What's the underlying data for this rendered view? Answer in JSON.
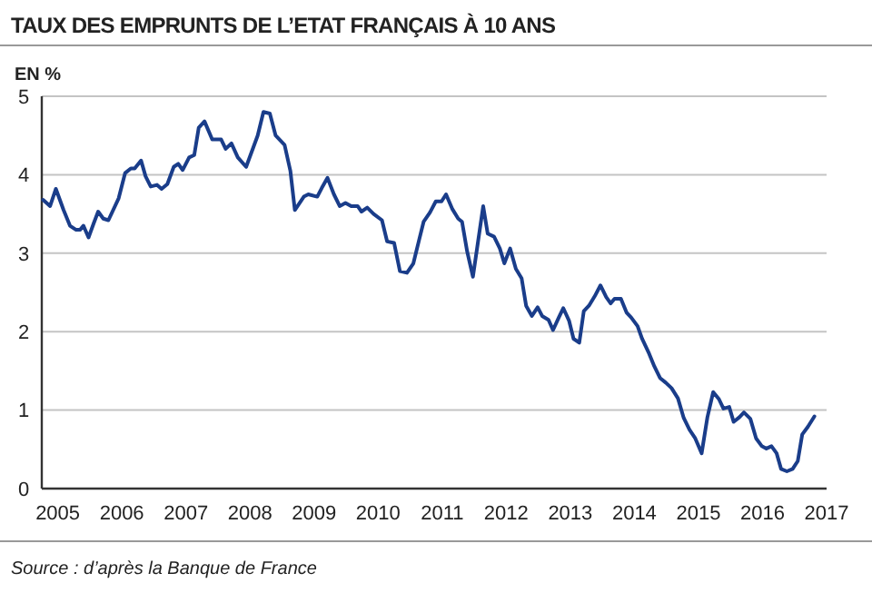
{
  "chart_data": {
    "type": "line",
    "title": "TAUX DES EMPRUNTS DE L’ETAT FRANÇAIS À 10 ANS",
    "ylabel": "EN %",
    "annotations": [
      "Source : d’après la Banque de France"
    ],
    "x": [
      2004.77,
      2004.88,
      2004.97,
      2005.09,
      2005.19,
      2005.28,
      2005.35,
      2005.4,
      2005.48,
      2005.56,
      2005.63,
      2005.71,
      2005.79,
      2005.95,
      2006.05,
      2006.14,
      2006.2,
      2006.3,
      2006.37,
      2006.45,
      2006.55,
      2006.62,
      2006.71,
      2006.81,
      2006.88,
      2006.95,
      2007.05,
      2007.13,
      2007.2,
      2007.29,
      2007.41,
      2007.55,
      2007.62,
      2007.71,
      2007.81,
      2007.94,
      2008.12,
      2008.21,
      2008.31,
      2008.4,
      2008.54,
      2008.63,
      2008.7,
      2008.84,
      2008.91,
      2009.05,
      2009.12,
      2009.21,
      2009.31,
      2009.4,
      2009.49,
      2009.58,
      2009.68,
      2009.74,
      2009.83,
      2009.93,
      2010.06,
      2010.14,
      2010.25,
      2010.34,
      2010.45,
      2010.55,
      2010.64,
      2010.71,
      2010.81,
      2010.9,
      2010.99,
      2011.06,
      2011.16,
      2011.25,
      2011.31,
      2011.39,
      2011.48,
      2011.56,
      2011.64,
      2011.71,
      2011.81,
      2011.9,
      2011.97,
      2012.06,
      2012.15,
      2012.24,
      2012.31,
      2012.4,
      2012.49,
      2012.56,
      2012.66,
      2012.73,
      2012.82,
      2012.89,
      2012.98,
      2013.05,
      2013.14,
      2013.21,
      2013.29,
      2013.38,
      2013.47,
      2013.56,
      2013.63,
      2013.69,
      2013.79,
      2013.88,
      2013.95,
      2014.05,
      2014.12,
      2014.23,
      2014.31,
      2014.4,
      2014.49,
      2014.58,
      2014.68,
      2014.77,
      2014.86,
      2014.95,
      2015.05,
      2015.14,
      2015.23,
      2015.32,
      2015.39,
      2015.48,
      2015.55,
      2015.64,
      2015.71,
      2015.81,
      2015.9,
      2015.99,
      2016.06,
      2016.14,
      2016.22,
      2016.29,
      2016.38,
      2016.47,
      2016.55,
      2016.62,
      2016.71,
      2016.81
    ],
    "series": [
      {
        "color": "#1a3d8a",
        "values": [
          3.68,
          3.6,
          3.82,
          3.55,
          3.35,
          3.3,
          3.3,
          3.35,
          3.2,
          3.38,
          3.53,
          3.44,
          3.42,
          3.7,
          4.02,
          4.08,
          4.08,
          4.18,
          3.98,
          3.85,
          3.87,
          3.82,
          3.88,
          4.1,
          4.14,
          4.06,
          4.22,
          4.25,
          4.6,
          4.68,
          4.45,
          4.45,
          4.33,
          4.4,
          4.22,
          4.1,
          4.5,
          4.8,
          4.78,
          4.5,
          4.38,
          4.05,
          3.55,
          3.72,
          3.75,
          3.72,
          3.83,
          3.96,
          3.75,
          3.6,
          3.64,
          3.6,
          3.6,
          3.53,
          3.58,
          3.5,
          3.42,
          3.15,
          3.13,
          2.77,
          2.75,
          2.87,
          3.17,
          3.4,
          3.52,
          3.66,
          3.66,
          3.75,
          3.56,
          3.44,
          3.4,
          3.02,
          2.7,
          3.15,
          3.6,
          3.25,
          3.21,
          3.06,
          2.87,
          3.06,
          2.8,
          2.68,
          2.33,
          2.2,
          2.31,
          2.2,
          2.15,
          2.02,
          2.18,
          2.3,
          2.14,
          1.91,
          1.86,
          2.26,
          2.33,
          2.45,
          2.59,
          2.44,
          2.36,
          2.42,
          2.42,
          2.24,
          2.18,
          2.07,
          1.91,
          1.72,
          1.56,
          1.41,
          1.35,
          1.28,
          1.15,
          0.9,
          0.75,
          0.64,
          0.45,
          0.91,
          1.23,
          1.14,
          1.02,
          1.04,
          0.85,
          0.91,
          0.97,
          0.89,
          0.64,
          0.54,
          0.51,
          0.54,
          0.45,
          0.25,
          0.22,
          0.25,
          0.35,
          0.69,
          0.79,
          0.92
        ]
      }
    ],
    "xlim": [
      2004.75,
      2017
    ],
    "xticks": [
      2005,
      2006,
      2007,
      2008,
      2009,
      2010,
      2011,
      2012,
      2013,
      2014,
      2015,
      2016,
      2017
    ],
    "ylim": [
      0,
      5
    ],
    "yticks": [
      0,
      1,
      2,
      3,
      4,
      5
    ],
    "grid": "y"
  }
}
